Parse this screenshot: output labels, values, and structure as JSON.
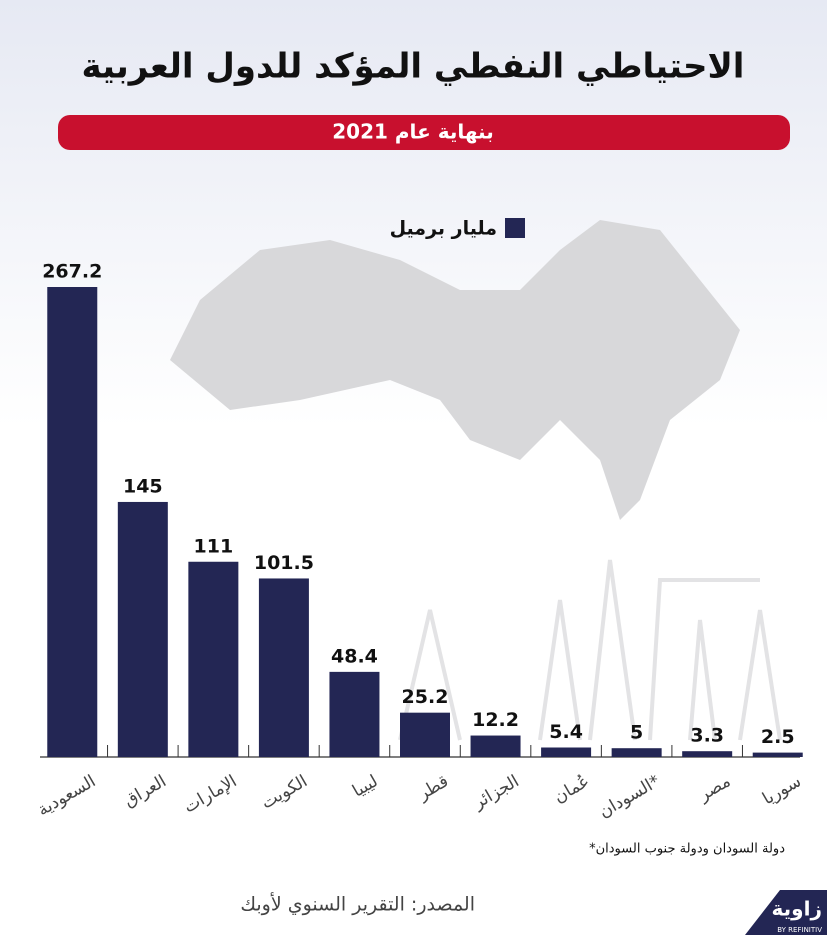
{
  "chart_data": {
    "type": "bar",
    "title": "الاحتياطي النفطي المؤكد للدول العربية",
    "subtitle": "بنهاية عام 2021",
    "legend": "مليار برميل",
    "color": "#232654",
    "categories": [
      "السعودية",
      "العراق",
      "الإمارات",
      "الكويت",
      "ليبيا",
      "قطر",
      "الجزائر",
      "عُمان",
      "السودان*",
      "مصر",
      "سوريا"
    ],
    "values": [
      267.2,
      145,
      111,
      101.5,
      48.4,
      25.2,
      12.2,
      5.4,
      5,
      3.3,
      2.5
    ],
    "footnote": "*دولة السودان ودولة جنوب السودان",
    "source": "المصدر: التقرير السنوي لأوبك",
    "logo": "زاوية",
    "logo_sub": "BY REFINITIV"
  }
}
